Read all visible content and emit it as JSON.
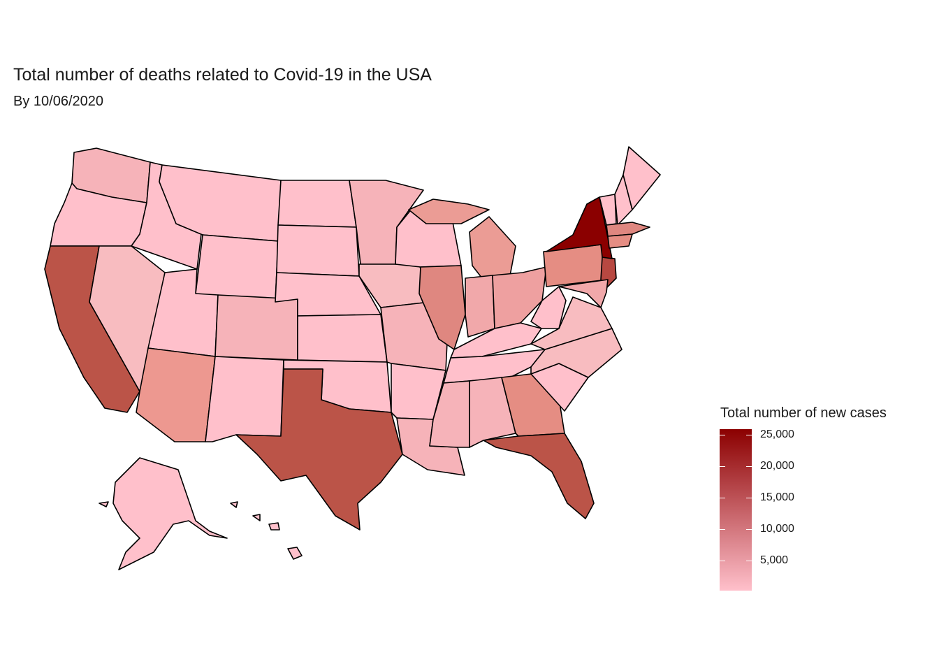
{
  "map": {
    "title": "Total number of deaths related to Covid-19 in the USA",
    "subtitle": "By 10/06/2020"
  },
  "legend": {
    "title": "Total number of new cases",
    "ticks": [
      "25,000",
      "20,000",
      "15,000",
      "10,000",
      "5,000"
    ],
    "ramp_low": "#ffc0cb",
    "ramp_high": "#8b0000"
  },
  "chart_data": {
    "type": "choropleth",
    "region": "USA",
    "value_range": [
      0,
      25000
    ],
    "highlighted": [
      {
        "state": "New York",
        "level": "highest"
      },
      {
        "state": "New Jersey",
        "level": "high"
      },
      {
        "state": "California",
        "level": "high"
      },
      {
        "state": "Texas",
        "level": "high"
      },
      {
        "state": "Florida",
        "level": "high"
      },
      {
        "state": "Massachusetts",
        "level": "medium"
      },
      {
        "state": "Illinois",
        "level": "medium"
      },
      {
        "state": "Pennsylvania",
        "level": "medium"
      }
    ]
  }
}
